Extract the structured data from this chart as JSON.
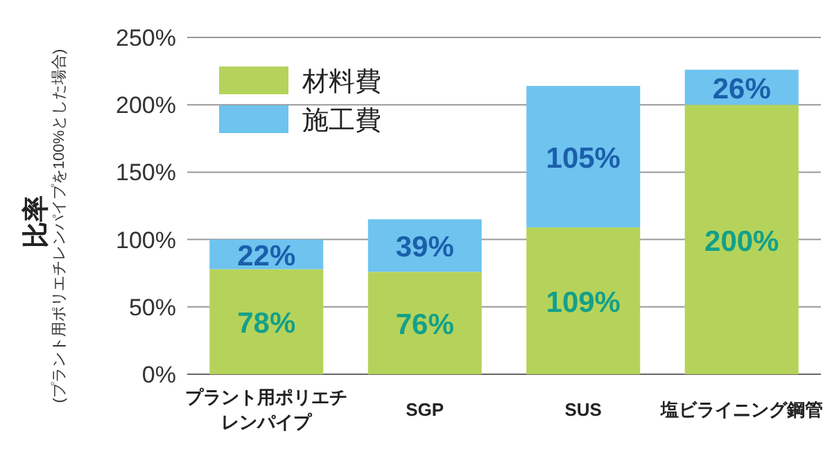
{
  "chart_data": {
    "type": "bar",
    "stacked": true,
    "ylabel": "比率",
    "annotations": [
      "(プラント用ポリエチレンパイプを100%とした場合)"
    ],
    "categories": [
      "プラント用ポリエチレンパイプ",
      "SGP",
      "SUS",
      "塩ビライニング鋼管"
    ],
    "series": [
      {
        "name": "材料費",
        "color": "#b5d35a",
        "values": [
          78,
          76,
          109,
          200
        ],
        "value_labels": [
          "78%",
          "76%",
          "109%",
          "200%"
        ]
      },
      {
        "name": "施工費",
        "color": "#6ec3ef",
        "values": [
          22,
          39,
          105,
          26
        ],
        "value_labels": [
          "22%",
          "39%",
          "105%",
          "26%"
        ]
      }
    ],
    "ylim": [
      0,
      250
    ],
    "yticks": [
      {
        "value": 0,
        "label": "0%"
      },
      {
        "value": 50,
        "label": "50%"
      },
      {
        "value": 100,
        "label": "100%"
      },
      {
        "value": 150,
        "label": "150%"
      },
      {
        "value": 200,
        "label": "200%"
      },
      {
        "value": 250,
        "label": "250%"
      }
    ],
    "grid": "y",
    "legend": "top left"
  }
}
